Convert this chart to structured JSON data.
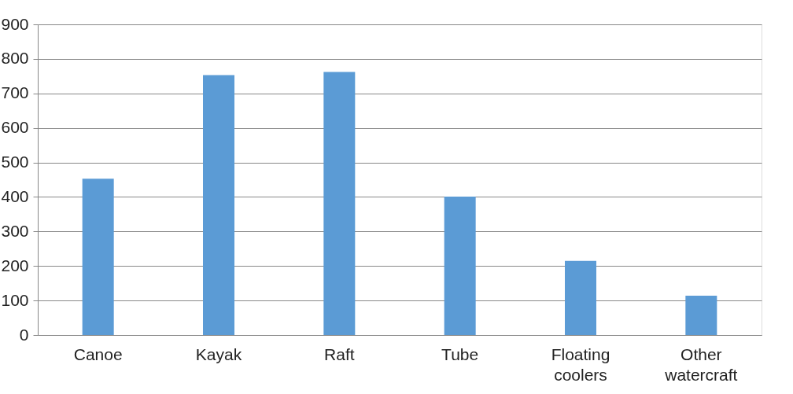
{
  "chart_data": {
    "type": "bar",
    "categories": [
      "Canoe",
      "Kayak",
      "Raft",
      "Tube",
      "Floating coolers",
      "Other watercraft"
    ],
    "values": [
      453,
      753,
      762,
      401,
      215,
      114
    ],
    "color": "#5b9bd5",
    "ylim": [
      0,
      900
    ],
    "yticks": [
      0,
      100,
      200,
      300,
      400,
      500,
      600,
      700,
      800,
      900
    ],
    "grid": "y"
  }
}
